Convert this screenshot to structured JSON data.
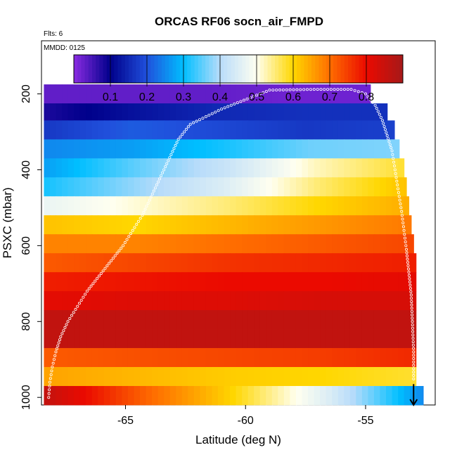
{
  "chart_data": {
    "type": "heatmap",
    "title": "ORCAS RF06 socn_air_FMPD",
    "subtitle": "Flts: 6",
    "annotation": "MMDD: 0125",
    "xlabel": "Latitude (deg N)",
    "ylabel": "PSXC (mbar)",
    "xlim": [
      -68.5,
      -52.1
    ],
    "ylim": [
      1020,
      60
    ],
    "x_ticks": [
      -65,
      -60,
      -55
    ],
    "x_tick_labels": [
      "-65",
      "-60",
      "-55"
    ],
    "y_ticks": [
      200,
      400,
      600,
      800,
      1000
    ],
    "y_tick_labels": [
      "200",
      "400",
      "600",
      "800",
      "1000"
    ],
    "colorbar": {
      "range": [
        0.0,
        0.9
      ],
      "ticks": [
        0.1,
        0.2,
        0.3,
        0.4,
        0.5,
        0.6,
        0.7,
        0.8
      ],
      "tick_labels": [
        "0.1",
        "0.2",
        "0.3",
        "0.4",
        "0.5",
        "0.6",
        "0.7",
        "0.8"
      ]
    },
    "x_start": -68.4,
    "rows": [
      {
        "p_top": 175,
        "p_bot": 225,
        "x_end": -54.8,
        "values": [
          0.03,
          0.03,
          0.03,
          0.02,
          0.02
        ]
      },
      {
        "p_top": 225,
        "p_bot": 270,
        "x_end": -54.1,
        "values": [
          0.08,
          0.12,
          0.15,
          0.16,
          0.16
        ]
      },
      {
        "p_top": 270,
        "p_bot": 320,
        "x_end": -53.8,
        "values": [
          0.17,
          0.21,
          0.19,
          0.17,
          0.18
        ]
      },
      {
        "p_top": 320,
        "p_bot": 370,
        "x_end": -53.6,
        "values": [
          0.25,
          0.27,
          0.31,
          0.36,
          0.37
        ]
      },
      {
        "p_top": 370,
        "p_bot": 420,
        "x_end": -53.4,
        "values": [
          0.27,
          0.35,
          0.42,
          0.52,
          0.58
        ]
      },
      {
        "p_top": 420,
        "p_bot": 470,
        "x_end": -53.3,
        "values": [
          0.31,
          0.38,
          0.45,
          0.55,
          0.62
        ]
      },
      {
        "p_top": 470,
        "p_bot": 520,
        "x_end": -53.2,
        "values": [
          0.47,
          0.51,
          0.55,
          0.6,
          0.64
        ]
      },
      {
        "p_top": 520,
        "p_bot": 570,
        "x_end": -53.1,
        "values": [
          0.62,
          0.6,
          0.63,
          0.66,
          0.69
        ]
      },
      {
        "p_top": 570,
        "p_bot": 620,
        "x_end": -53.0,
        "values": [
          0.68,
          0.68,
          0.7,
          0.72,
          0.74
        ]
      },
      {
        "p_top": 620,
        "p_bot": 670,
        "x_end": -52.9,
        "values": [
          0.72,
          0.74,
          0.76,
          0.77,
          0.78
        ]
      },
      {
        "p_top": 670,
        "p_bot": 720,
        "x_end": -52.9,
        "values": [
          0.78,
          0.79,
          0.8,
          0.8,
          0.81
        ]
      },
      {
        "p_top": 720,
        "p_bot": 770,
        "x_end": -52.9,
        "values": [
          0.81,
          0.82,
          0.82,
          0.83,
          0.83
        ]
      },
      {
        "p_top": 770,
        "p_bot": 820,
        "x_end": -52.9,
        "values": [
          0.86,
          0.86,
          0.86,
          0.86,
          0.86
        ]
      },
      {
        "p_top": 820,
        "p_bot": 870,
        "x_end": -52.9,
        "values": [
          0.86,
          0.86,
          0.86,
          0.86,
          0.86
        ]
      },
      {
        "p_top": 870,
        "p_bot": 920,
        "x_end": -52.9,
        "values": [
          0.72,
          0.73,
          0.74,
          0.75,
          0.77
        ]
      },
      {
        "p_top": 920,
        "p_bot": 970,
        "x_end": -52.9,
        "values": [
          0.65,
          0.63,
          0.61,
          0.6,
          0.58
        ]
      },
      {
        "p_top": 970,
        "p_bot": 1020,
        "x_end": -52.6,
        "values": [
          0.86,
          0.72,
          0.6,
          0.45,
          0.25
        ]
      }
    ],
    "flight_track": {
      "lat": [
        -68.2,
        -68.15,
        -68.05,
        -67.9,
        -67.7,
        -67.4,
        -67.0,
        -66.6,
        -66.1,
        -65.6,
        -65.1,
        -64.7,
        -64.3,
        -64.0,
        -63.7,
        -63.4,
        -63.1,
        -62.8,
        -62.3,
        -61.0,
        -59.0,
        -57.0,
        -55.6,
        -55.0,
        -54.6,
        -54.3,
        -54.1,
        -53.9,
        -53.8,
        -53.7,
        -53.6,
        -53.5,
        -53.4,
        -53.3,
        -53.2,
        -53.1,
        -53.05,
        -53.0,
        -53.0
      ],
      "p": [
        1000,
        960,
        920,
        880,
        840,
        800,
        760,
        720,
        680,
        640,
        600,
        560,
        520,
        480,
        440,
        400,
        360,
        320,
        280,
        240,
        190,
        188,
        188,
        200,
        230,
        270,
        310,
        350,
        390,
        430,
        470,
        510,
        560,
        610,
        670,
        730,
        800,
        880,
        960
      ]
    },
    "arrow_marker": {
      "lat": -53.0,
      "p_from": 965,
      "p_to": 1020
    }
  }
}
